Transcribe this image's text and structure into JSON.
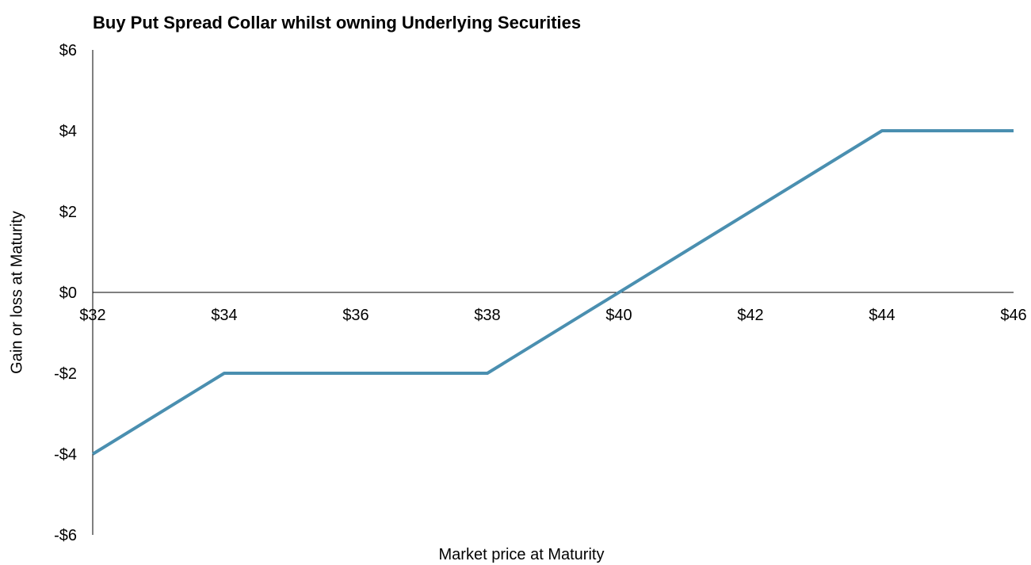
{
  "chart_data": {
    "type": "line",
    "title": "Buy Put Spread Collar whilst owning Underlying Securities",
    "xlabel": "Market price at Maturity",
    "ylabel": "Gain or loss at Maturity",
    "xlim": [
      32,
      46
    ],
    "ylim": [
      -6,
      6
    ],
    "x_ticks": [
      "$32",
      "$34",
      "$36",
      "$38",
      "$40",
      "$42",
      "$44",
      "$46"
    ],
    "x_tick_values": [
      32,
      34,
      36,
      38,
      40,
      42,
      44,
      46
    ],
    "y_ticks": [
      "$6",
      "$4",
      "$2",
      "$0",
      "-$2",
      "-$4",
      "-$6"
    ],
    "y_tick_values": [
      6,
      4,
      2,
      0,
      -2,
      -4,
      -6
    ],
    "grid": false,
    "legend": "none",
    "series": [
      {
        "color": "#4a8fb0",
        "x": [
          32,
          34,
          38,
          44,
          46
        ],
        "y": [
          -4,
          -2,
          -2,
          4,
          4
        ]
      }
    ]
  }
}
